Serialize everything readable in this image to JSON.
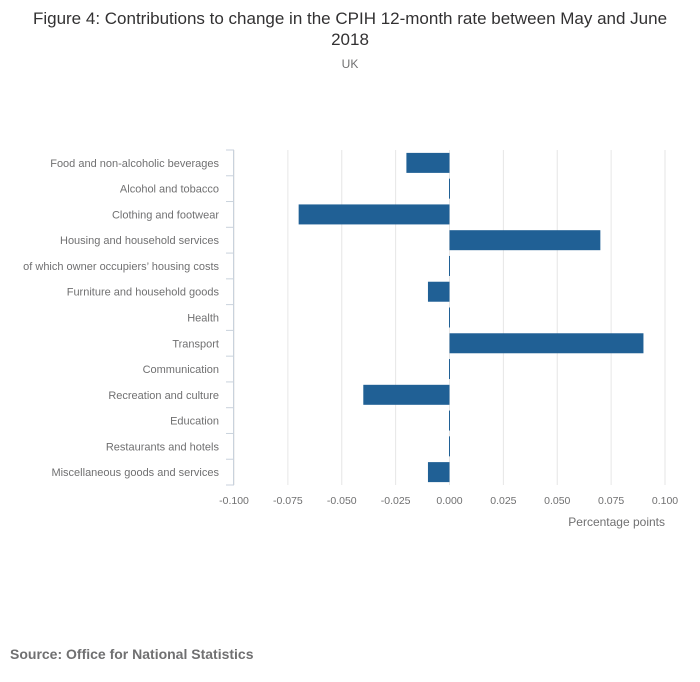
{
  "chart_data": {
    "type": "bar",
    "orientation": "horizontal",
    "title": "Figure 4: Contributions to change in the CPIH 12-month rate between May and June 2018",
    "subtitle": "UK",
    "xlabel": "Percentage points",
    "ylabel": "",
    "xlim": [
      -0.1,
      0.1
    ],
    "ticks": [
      "-0.100",
      "-0.075",
      "-0.050",
      "-0.025",
      "0.000",
      "0.025",
      "0.050",
      "0.075",
      "0.100"
    ],
    "tick_values": [
      -0.1,
      -0.075,
      -0.05,
      -0.025,
      0,
      0.025,
      0.05,
      0.075,
      0.1
    ],
    "grid": true,
    "categories": [
      "Food and non-alcoholic beverages",
      "Alcohol and tobacco",
      "Clothing and footwear",
      "Housing and household services",
      "of which owner occupiers’ housing costs",
      "Furniture and household goods",
      "Health",
      "Transport",
      "Communication",
      "Recreation and culture",
      "Education",
      "Restaurants and hotels",
      "Miscellaneous goods and services"
    ],
    "values": [
      -0.02,
      0.0,
      -0.07,
      0.07,
      0.0,
      -0.01,
      0.0,
      0.09,
      0.0,
      -0.04,
      0.0,
      0.0,
      -0.01
    ],
    "bar_color": "#206095"
  },
  "source": "Source: Office for National Statistics"
}
